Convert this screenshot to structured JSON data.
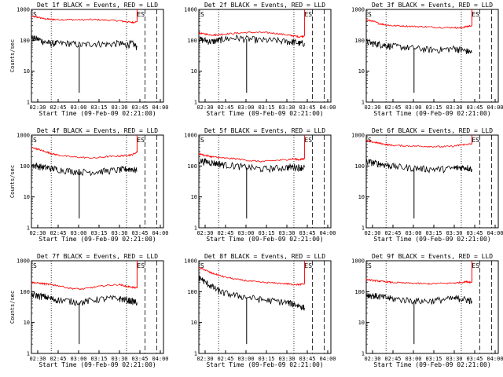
{
  "chart_data": [
    {
      "type": "line",
      "title": "Det 1f BLACK = Events, RED = LLD",
      "xlabel": "Start Time (09-Feb-09 02:21:00)",
      "ylabel": "Counts/sec",
      "x_ticks": [
        "02:30",
        "02:45",
        "03:00",
        "03:15",
        "03:30",
        "03:45",
        "04:00"
      ],
      "y_ticks": [
        "1",
        "10",
        "100",
        "1000"
      ],
      "xlim_min": [
        0,
        105
      ],
      "ylim": [
        1,
        1000
      ],
      "log_y": true,
      "event_markers": [
        "ES",
        "S"
      ],
      "series": [
        {
          "color": "#ff0000",
          "x": [
            0,
            5,
            10,
            15,
            20,
            30,
            40,
            50,
            60,
            70,
            75,
            80,
            84
          ],
          "y": [
            600,
            560,
            500,
            480,
            470,
            470,
            460,
            470,
            450,
            430,
            400,
            380,
            400
          ]
        },
        {
          "color": "#000000",
          "x": [
            0,
            5,
            10,
            15,
            20,
            30,
            40,
            50,
            60,
            70,
            75,
            80,
            84
          ],
          "y": [
            120,
            110,
            90,
            80,
            80,
            80,
            70,
            80,
            75,
            80,
            70,
            80,
            60
          ]
        }
      ]
    },
    {
      "type": "line",
      "title": "Det 2f BLACK = Events, RED = LLD",
      "xlabel": "Start Time (09-Feb-09 02:21:00)",
      "ylabel": "",
      "x_ticks": [
        "02:30",
        "02:45",
        "03:00",
        "03:15",
        "03:30",
        "03:45",
        "04:00"
      ],
      "y_ticks": [
        "1",
        "10",
        "100",
        "1000"
      ],
      "xlim_min": [
        0,
        105
      ],
      "ylim": [
        1,
        1000
      ],
      "log_y": true,
      "event_markers": [
        "ES",
        "S"
      ],
      "series": [
        {
          "color": "#ff0000",
          "x": [
            0,
            5,
            10,
            15,
            20,
            30,
            40,
            50,
            60,
            70,
            75,
            80,
            84
          ],
          "y": [
            170,
            160,
            150,
            150,
            160,
            170,
            180,
            180,
            170,
            150,
            140,
            130,
            140
          ]
        },
        {
          "color": "#000000",
          "x": [
            0,
            5,
            10,
            15,
            20,
            30,
            40,
            50,
            60,
            70,
            75,
            80,
            84
          ],
          "y": [
            110,
            100,
            90,
            100,
            110,
            120,
            110,
            100,
            100,
            90,
            90,
            80,
            80
          ]
        }
      ]
    },
    {
      "type": "line",
      "title": "Det 3f BLACK = Events, RED = LLD",
      "xlabel": "Start Time (09-Feb-09 02:21:00)",
      "ylabel": "",
      "x_ticks": [
        "02:30",
        "02:45",
        "03:00",
        "03:15",
        "03:30",
        "03:45",
        "04:00"
      ],
      "y_ticks": [
        "1",
        "10",
        "100",
        "1000"
      ],
      "xlim_min": [
        0,
        105
      ],
      "ylim": [
        1,
        1000
      ],
      "log_y": true,
      "event_markers": [
        "ES",
        "S"
      ],
      "series": [
        {
          "color": "#ff0000",
          "x": [
            0,
            5,
            10,
            15,
            20,
            30,
            40,
            50,
            60,
            70,
            75,
            80,
            84
          ],
          "y": [
            450,
            420,
            350,
            320,
            300,
            290,
            280,
            270,
            260,
            260,
            250,
            280,
            300
          ]
        },
        {
          "color": "#000000",
          "x": [
            0,
            5,
            10,
            15,
            20,
            30,
            40,
            50,
            60,
            70,
            75,
            80,
            84
          ],
          "y": [
            90,
            80,
            75,
            70,
            65,
            60,
            55,
            50,
            50,
            55,
            50,
            45,
            40
          ]
        }
      ]
    },
    {
      "type": "line",
      "title": "Det 4f BLACK = Events, RED = LLD",
      "xlabel": "Start Time (09-Feb-09 02:21:00)",
      "ylabel": "Counts/sec",
      "x_ticks": [
        "02:30",
        "02:45",
        "03:00",
        "03:15",
        "03:30",
        "03:45",
        "04:00"
      ],
      "y_ticks": [
        "1",
        "10",
        "100",
        "1000"
      ],
      "xlim_min": [
        0,
        105
      ],
      "ylim": [
        1,
        1000
      ],
      "log_y": true,
      "event_markers": [
        "ES",
        "S"
      ],
      "series": [
        {
          "color": "#ff0000",
          "x": [
            0,
            5,
            10,
            15,
            20,
            30,
            40,
            50,
            60,
            70,
            75,
            80,
            84
          ],
          "y": [
            400,
            350,
            300,
            260,
            230,
            200,
            190,
            180,
            200,
            210,
            220,
            230,
            280
          ]
        },
        {
          "color": "#000000",
          "x": [
            0,
            5,
            10,
            15,
            20,
            30,
            40,
            50,
            60,
            70,
            75,
            80,
            84
          ],
          "y": [
            110,
            100,
            90,
            85,
            80,
            70,
            65,
            65,
            70,
            75,
            80,
            80,
            70
          ]
        }
      ]
    },
    {
      "type": "line",
      "title": "Det 5f BLACK = Events, RED = LLD",
      "xlabel": "Start Time (09-Feb-09 02:21:00)",
      "ylabel": "",
      "x_ticks": [
        "02:30",
        "02:45",
        "03:00",
        "03:15",
        "03:30",
        "03:45",
        "04:00"
      ],
      "y_ticks": [
        "1",
        "10",
        "100",
        "1000"
      ],
      "xlim_min": [
        0,
        105
      ],
      "ylim": [
        1,
        1000
      ],
      "log_y": true,
      "event_markers": [
        "ES",
        "S"
      ],
      "series": [
        {
          "color": "#ff0000",
          "x": [
            0,
            5,
            10,
            15,
            20,
            30,
            40,
            50,
            60,
            70,
            75,
            80,
            84
          ],
          "y": [
            250,
            220,
            200,
            190,
            180,
            170,
            150,
            140,
            150,
            160,
            170,
            160,
            170
          ]
        },
        {
          "color": "#000000",
          "x": [
            0,
            5,
            10,
            15,
            20,
            30,
            40,
            50,
            60,
            70,
            75,
            80,
            84
          ],
          "y": [
            150,
            140,
            130,
            120,
            110,
            100,
            90,
            80,
            85,
            90,
            95,
            90,
            90
          ]
        }
      ]
    },
    {
      "type": "line",
      "title": "Det 6f BLACK = Events, RED = LLD",
      "xlabel": "Start Time (09-Feb-09 02:21:00)",
      "ylabel": "",
      "x_ticks": [
        "02:30",
        "02:45",
        "03:00",
        "03:15",
        "03:30",
        "03:45",
        "04:00"
      ],
      "y_ticks": [
        "1",
        "10",
        "100",
        "1000"
      ],
      "xlim_min": [
        0,
        105
      ],
      "ylim": [
        1,
        1000
      ],
      "log_y": true,
      "event_markers": [
        "ES",
        "S"
      ],
      "series": [
        {
          "color": "#ff0000",
          "x": [
            0,
            5,
            10,
            15,
            20,
            30,
            40,
            50,
            60,
            70,
            75,
            80,
            84
          ],
          "y": [
            650,
            600,
            550,
            500,
            470,
            450,
            440,
            430,
            420,
            440,
            480,
            500,
            520
          ]
        },
        {
          "color": "#000000",
          "x": [
            0,
            5,
            10,
            15,
            20,
            30,
            40,
            50,
            60,
            70,
            75,
            80,
            84
          ],
          "y": [
            140,
            130,
            120,
            110,
            100,
            90,
            85,
            80,
            80,
            85,
            90,
            90,
            80
          ]
        }
      ]
    },
    {
      "type": "line",
      "title": "Det 7f BLACK = Events, RED = LLD",
      "xlabel": "Start Time (09-Feb-09 02:21:00)",
      "ylabel": "Counts/sec",
      "x_ticks": [
        "02:30",
        "02:45",
        "03:00",
        "03:15",
        "03:30",
        "03:45",
        "04:00"
      ],
      "y_ticks": [
        "1",
        "10",
        "100",
        "1000"
      ],
      "xlim_min": [
        0,
        105
      ],
      "ylim": [
        1,
        1000
      ],
      "log_y": true,
      "event_markers": [
        "ES",
        "S"
      ],
      "series": [
        {
          "color": "#ff0000",
          "x": [
            0,
            5,
            10,
            15,
            20,
            30,
            40,
            50,
            60,
            70,
            75,
            80,
            84
          ],
          "y": [
            200,
            190,
            180,
            170,
            160,
            130,
            120,
            140,
            160,
            170,
            150,
            140,
            130
          ]
        },
        {
          "color": "#000000",
          "x": [
            0,
            5,
            10,
            15,
            20,
            30,
            40,
            50,
            60,
            70,
            75,
            80,
            84
          ],
          "y": [
            80,
            75,
            70,
            60,
            55,
            50,
            45,
            55,
            60,
            60,
            55,
            50,
            45
          ]
        }
      ]
    },
    {
      "type": "line",
      "title": "Det 8f BLACK = Events, RED = LLD",
      "xlabel": "Start Time (09-Feb-09 02:21:00)",
      "ylabel": "",
      "x_ticks": [
        "02:30",
        "02:45",
        "03:00",
        "03:15",
        "03:30",
        "03:45",
        "04:00"
      ],
      "y_ticks": [
        "1",
        "10",
        "100",
        "1000"
      ],
      "xlim_min": [
        0,
        105
      ],
      "ylim": [
        1,
        1000
      ],
      "log_y": true,
      "event_markers": [
        "ES",
        "S"
      ],
      "series": [
        {
          "color": "#ff0000",
          "x": [
            0,
            5,
            10,
            15,
            20,
            30,
            40,
            50,
            60,
            70,
            75,
            80,
            84
          ],
          "y": [
            600,
            500,
            400,
            350,
            300,
            250,
            220,
            200,
            190,
            180,
            170,
            170,
            180
          ]
        },
        {
          "color": "#000000",
          "x": [
            0,
            5,
            10,
            15,
            20,
            30,
            40,
            50,
            60,
            70,
            75,
            80,
            84
          ],
          "y": [
            300,
            200,
            150,
            110,
            90,
            75,
            65,
            55,
            50,
            45,
            40,
            35,
            30
          ]
        }
      ]
    },
    {
      "type": "line",
      "title": "Det 9f BLACK = Events, RED = LLD",
      "xlabel": "Start Time (09-Feb-09 02:21:00)",
      "ylabel": "",
      "x_ticks": [
        "02:30",
        "02:45",
        "03:00",
        "03:15",
        "03:30",
        "03:45",
        "04:00"
      ],
      "y_ticks": [
        "1",
        "10",
        "100",
        "1000"
      ],
      "xlim_min": [
        0,
        105
      ],
      "ylim": [
        1,
        1000
      ],
      "log_y": true,
      "event_markers": [
        "ES",
        "S"
      ],
      "series": [
        {
          "color": "#ff0000",
          "x": [
            0,
            5,
            10,
            15,
            20,
            30,
            40,
            50,
            60,
            70,
            75,
            80,
            84
          ],
          "y": [
            250,
            230,
            220,
            210,
            200,
            190,
            185,
            180,
            185,
            190,
            200,
            210,
            200
          ]
        },
        {
          "color": "#000000",
          "x": [
            0,
            5,
            10,
            15,
            20,
            30,
            40,
            50,
            60,
            70,
            75,
            80,
            84
          ],
          "y": [
            80,
            75,
            70,
            65,
            60,
            55,
            50,
            50,
            55,
            60,
            60,
            55,
            50
          ]
        }
      ]
    }
  ]
}
